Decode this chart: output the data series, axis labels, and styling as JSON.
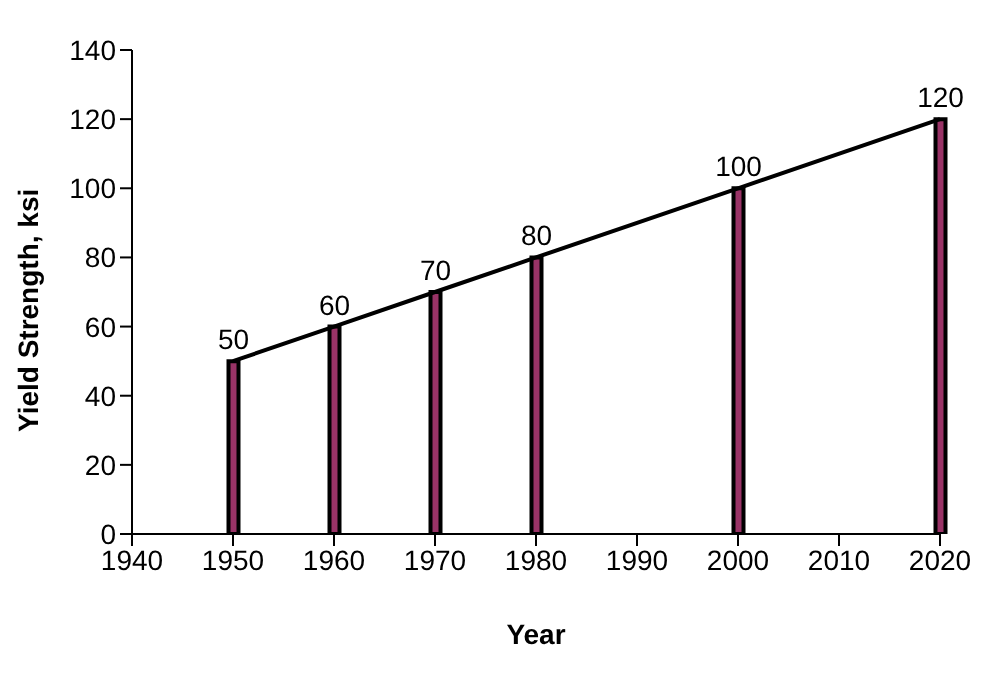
{
  "chart_data": {
    "type": "bar",
    "xlabel": "Year",
    "ylabel": "Yield Strength, ksi",
    "x": [
      1950,
      1960,
      1970,
      1980,
      2000,
      2020
    ],
    "series": [
      {
        "color": "#993366",
        "values": [
          50,
          60,
          70,
          80,
          100,
          120
        ],
        "value_labels": [
          "50",
          "60",
          "70",
          "80",
          "100",
          "120"
        ]
      },
      {
        "type": "line",
        "color": "#000000",
        "values": [
          50,
          60,
          70,
          80,
          100,
          120
        ]
      }
    ],
    "marker": "none",
    "line_style": "solid",
    "grid": false,
    "legend": false,
    "xlim": [
      1940,
      2020
    ],
    "xticks": [
      1940,
      1950,
      1960,
      1970,
      1980,
      1990,
      2000,
      2010,
      2020
    ],
    "ylim": [
      0,
      140
    ],
    "yticks": [
      0,
      20,
      40,
      60,
      80,
      100,
      120,
      140
    ]
  }
}
